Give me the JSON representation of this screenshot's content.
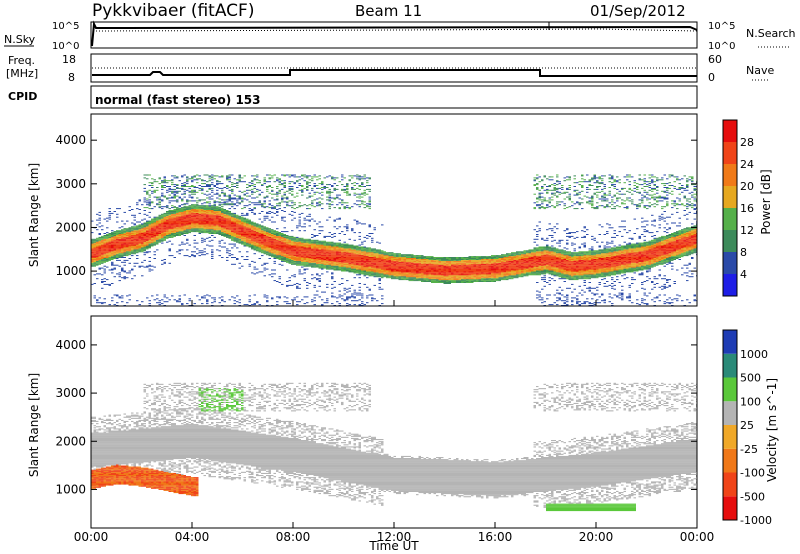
{
  "header": {
    "station": "Pykkvibaer (fitACF)",
    "beam": "Beam 11",
    "date": "01/Sep/2012"
  },
  "noise_panel": {
    "left_label": "N.Sky",
    "right_label": "N.Search",
    "left_ticks": [
      "10^5",
      "10^0"
    ],
    "right_ticks": [
      "10^5",
      "10^0"
    ]
  },
  "freq_panel": {
    "left_label_1": "Freq.",
    "left_label_2": "[MHz]",
    "right_label": "Nave",
    "left_ticks": [
      "18",
      "8"
    ],
    "right_ticks": [
      "60",
      "0"
    ]
  },
  "cpid_panel": {
    "label": "CPID",
    "text": "normal (fast stereo) 153"
  },
  "x_axis": {
    "ticks": [
      "00:00",
      "04:00",
      "08:00",
      "12:00",
      "16:00",
      "20:00",
      "00:00"
    ],
    "label": "Time UT"
  },
  "y_axis": {
    "label": "Slant Range [km]",
    "ticks": [
      "1000",
      "2000",
      "3000",
      "4000"
    ]
  },
  "power_colorbar": {
    "label": "Power [dB]",
    "ticks": [
      "4",
      "8",
      "12",
      "16",
      "20",
      "24",
      "28"
    ],
    "colors": [
      "#1e1ee6",
      "#2a4aa8",
      "#3c8a5a",
      "#55b04a",
      "#e6a820",
      "#f07a18",
      "#f04418",
      "#e60d0d"
    ]
  },
  "velocity_colorbar": {
    "label": "Velocity [m s^-1]",
    "ticks": [
      "1000",
      "500",
      "100",
      "25",
      "-25",
      "-100",
      "-500",
      "-1000"
    ],
    "colors": [
      "#1e3cb4",
      "#2a8a78",
      "#5ac83a",
      "#b4b4b4",
      "#f0a828",
      "#f07818",
      "#f04418",
      "#e60d0d"
    ]
  },
  "chart_data": [
    {
      "type": "heatmap",
      "title": "Power",
      "xlabel": "Time UT",
      "ylabel": "Slant Range [km]",
      "xlim": [
        0,
        24
      ],
      "ylim": [
        200,
        4600
      ],
      "colorbar_label": "Power [dB]",
      "colorbar_range": [
        0,
        32
      ],
      "bands": [
        {
          "t": [
            0,
            1,
            2,
            3,
            4,
            5,
            6,
            7,
            8,
            10,
            12,
            13,
            14,
            16,
            17,
            18,
            19,
            20,
            21,
            22,
            23,
            24
          ],
          "range_km": [
            1400,
            1600,
            1750,
            2050,
            2200,
            2150,
            1900,
            1650,
            1450,
            1300,
            1100,
            1050,
            1000,
            1050,
            1150,
            1250,
            1100,
            1150,
            1250,
            1350,
            1550,
            1750
          ],
          "power_db": 26
        }
      ]
    },
    {
      "type": "heatmap",
      "title": "Velocity",
      "xlabel": "Time UT",
      "ylabel": "Slant Range [km]",
      "xlim": [
        0,
        24
      ],
      "ylim": [
        200,
        4600
      ],
      "colorbar_label": "Velocity [m s^-1]",
      "colorbar_range": [
        -1000,
        1000
      ],
      "bands": [
        {
          "t": [
            0,
            4,
            8,
            12,
            16,
            20,
            24
          ],
          "range_km": [
            1800,
            2000,
            1700,
            1300,
            1200,
            1400,
            1700
          ],
          "velocity": 0
        },
        {
          "t": [
            0,
            1,
            2,
            3,
            4
          ],
          "range_km": [
            1200,
            1300,
            1250,
            1150,
            1050
          ],
          "velocity": -600
        }
      ]
    }
  ]
}
